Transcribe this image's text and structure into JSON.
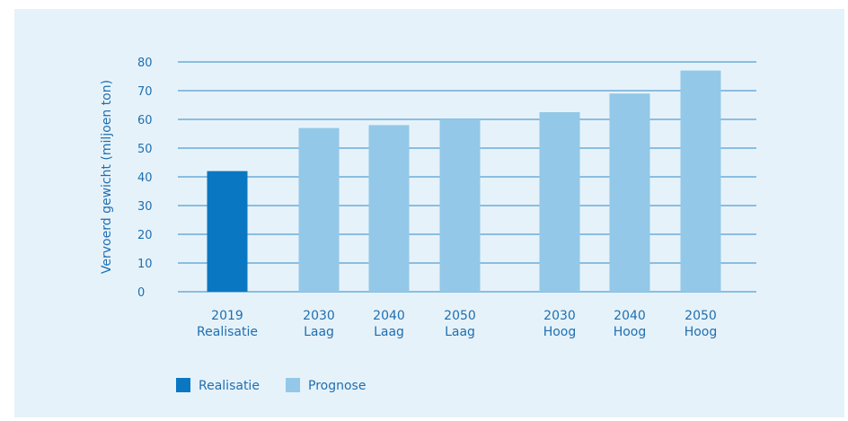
{
  "chart_data": {
    "type": "bar",
    "title": "",
    "ylabel": "Vervoerd gewicht (miljoen ton)",
    "xlabel": "",
    "ylim": [
      0,
      80
    ],
    "yticks": [
      0,
      10,
      20,
      30,
      40,
      50,
      60,
      70,
      80
    ],
    "grid": true,
    "legend_position": "bottom-left",
    "categories": [
      {
        "line1": "2019",
        "line2": "Realisatie",
        "series": "Realisatie"
      },
      {
        "line1": "2030",
        "line2": "Laag",
        "series": "Prognose"
      },
      {
        "line1": "2040",
        "line2": "Laag",
        "series": "Prognose"
      },
      {
        "line1": "2050",
        "line2": "Laag",
        "series": "Prognose"
      },
      {
        "line1": "2030",
        "line2": "Hoog",
        "series": "Prognose"
      },
      {
        "line1": "2040",
        "line2": "Hoog",
        "series": "Prognose"
      },
      {
        "line1": "2050",
        "line2": "Hoog",
        "series": "Prognose"
      }
    ],
    "values": [
      42,
      57,
      58,
      60,
      62.5,
      69,
      77
    ],
    "series": [
      {
        "name": "Realisatie",
        "color": "#0a77c2"
      },
      {
        "name": "Prognose",
        "color": "#93c8e8"
      }
    ]
  },
  "colors": {
    "background": "#e6f2fa",
    "gridline": "#2e8bc6",
    "text": "#1f6fb0"
  }
}
